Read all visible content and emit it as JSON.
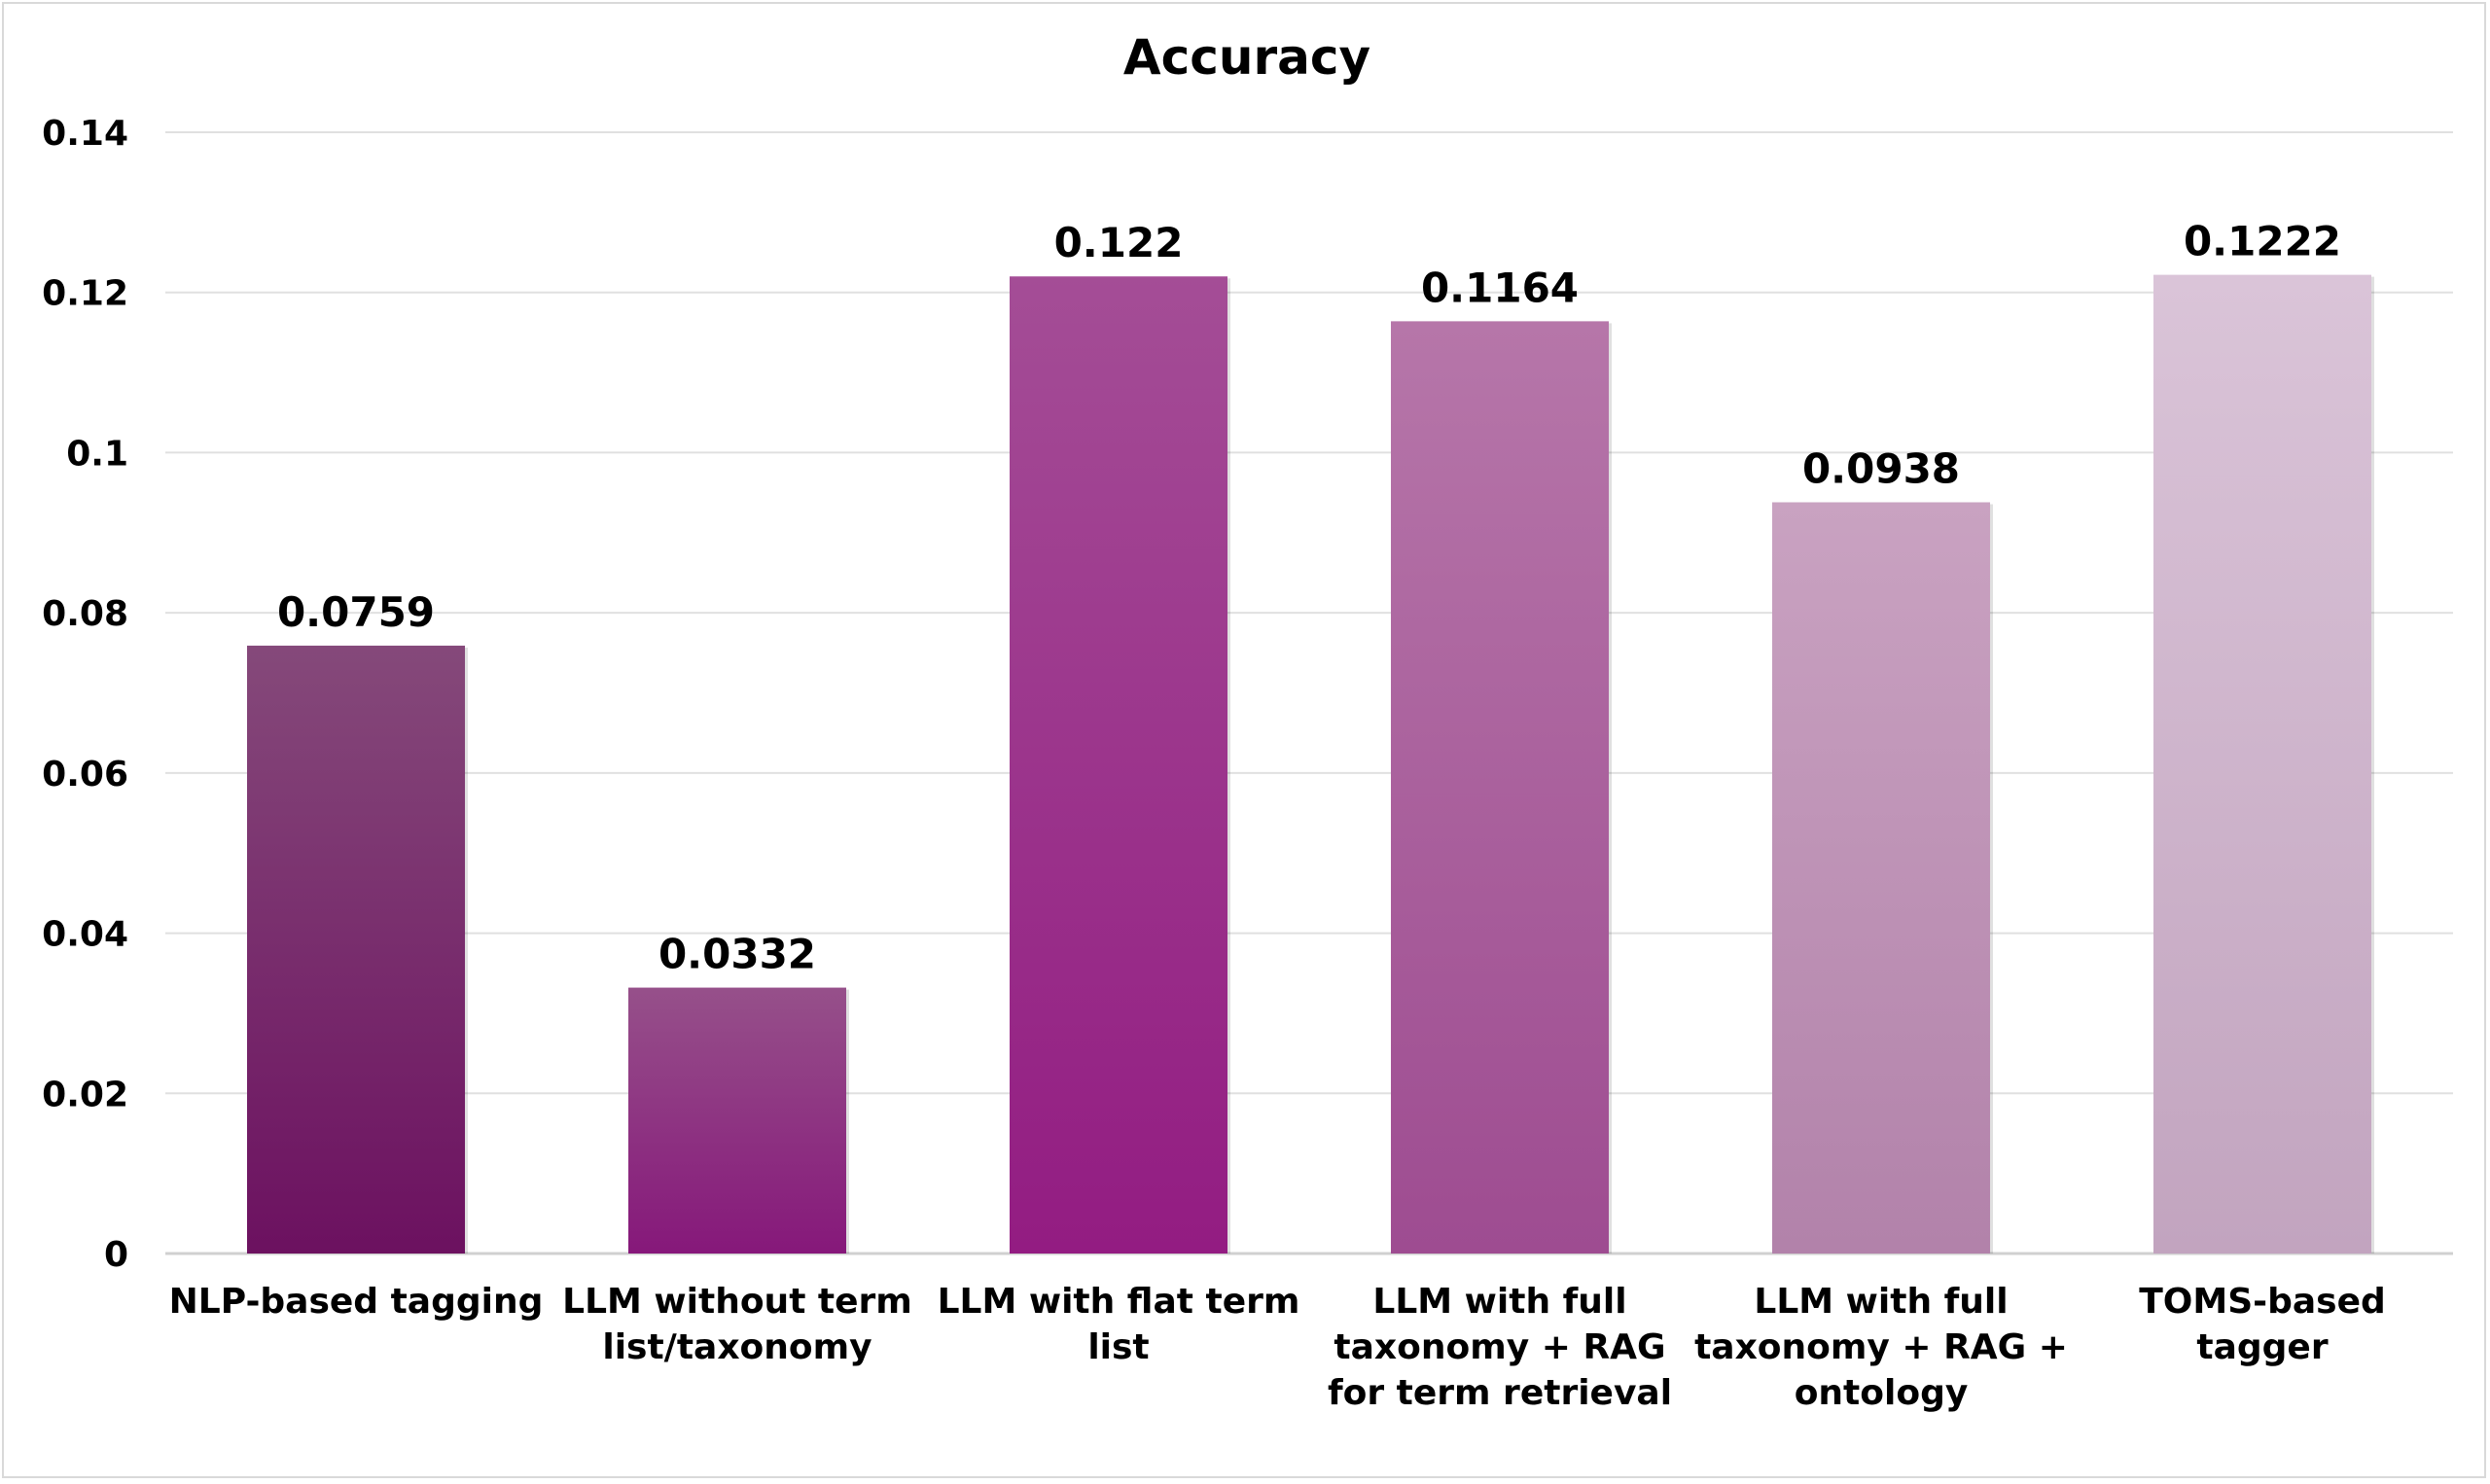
{
  "chart_data": {
    "type": "bar",
    "title": "Accuracy",
    "xlabel": "",
    "ylabel": "",
    "categories": [
      "NLP-based tagging",
      "LLM without term list/taxonomy",
      "LLM with flat term list",
      "LLM with full taxonomy + RAG for term retrieval",
      "LLM with full taxonomy + RAG + ontology",
      "TOMS-based tagger"
    ],
    "category_lines": [
      [
        "NLP-based tagging"
      ],
      [
        "LLM without term",
        "list/taxonomy"
      ],
      [
        "LLM with flat term",
        "list"
      ],
      [
        "LLM with full",
        "taxonomy + RAG",
        "for term retrieval"
      ],
      [
        "LLM with full",
        "taxonomy + RAG +",
        "ontology"
      ],
      [
        "TOMS-based",
        "tagger"
      ]
    ],
    "values": [
      0.0759,
      0.0332,
      0.122,
      0.1164,
      0.0938,
      0.1222
    ],
    "data_labels": [
      "0.0759",
      "0.0332",
      "0.122",
      "0.1164",
      "0.0938",
      "0.1222"
    ],
    "ylim": [
      0,
      0.14
    ],
    "yticks": [
      0,
      0.02,
      0.04,
      0.06,
      0.08,
      0.1,
      0.12,
      0.14
    ],
    "ytick_labels": [
      "0",
      "0.02",
      "0.04",
      "0.06",
      "0.08",
      "0.1",
      "0.12",
      "0.14"
    ],
    "grid": true,
    "legend": "none",
    "bar_colors": [
      {
        "top": "#85497a",
        "bottom": "#6c1160"
      },
      {
        "top": "#96508a",
        "bottom": "#86187a"
      },
      {
        "top": "#a44d96",
        "bottom": "#931c82"
      },
      {
        "top": "#b676a9",
        "bottom": "#9e4c91"
      },
      {
        "top": "#c9a2c1",
        "bottom": "#b282aa"
      },
      {
        "top": "#dac4d8",
        "bottom": "#c2a4bf"
      }
    ]
  }
}
